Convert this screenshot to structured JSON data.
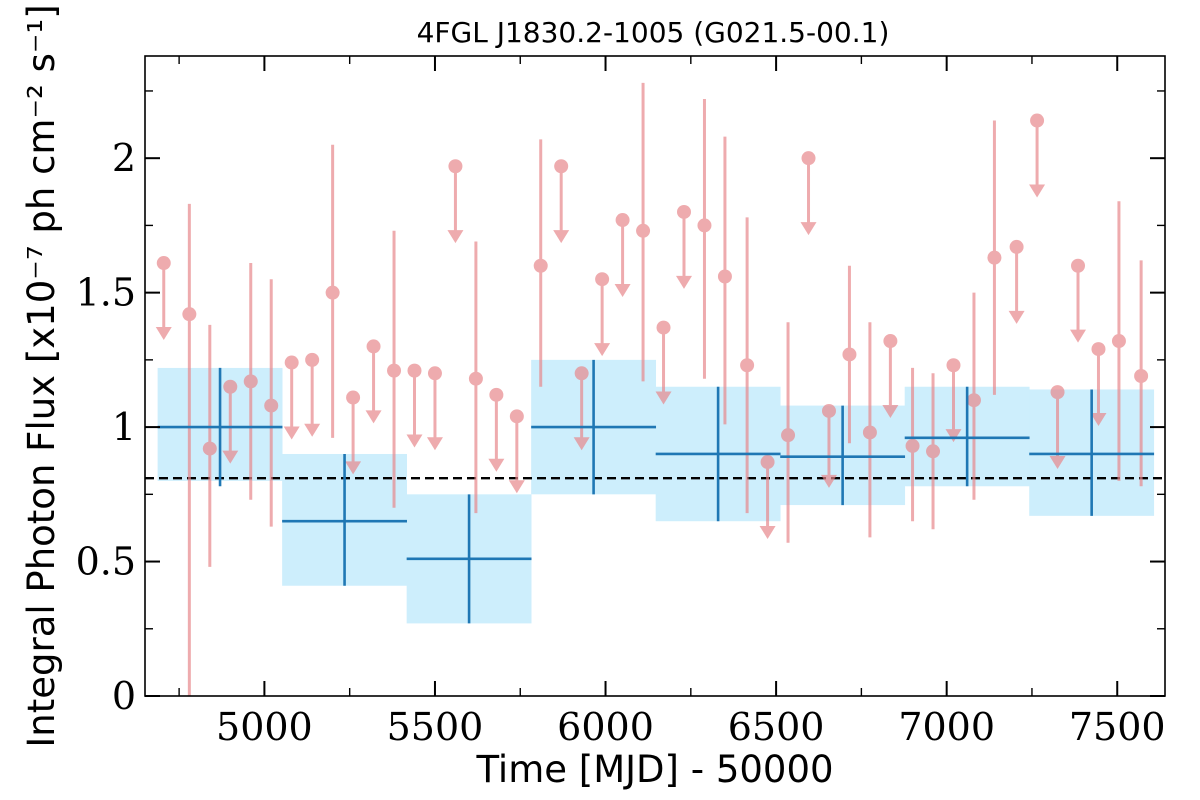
{
  "chart_data": {
    "type": "scatter",
    "title": "4FGL J1830.2-1005 (G021.5-00.1)",
    "xlabel": "Time [MJD] - 50000",
    "ylabel": "Integral Photon Flux [x10⁻⁷ ph cm⁻² s⁻¹]",
    "xlim": [
      4650,
      7640
    ],
    "ylim": [
      0,
      2.38
    ],
    "x_ticks": [
      5000,
      5500,
      6000,
      6500,
      7000,
      7500
    ],
    "x_tick_labels": [
      "5000",
      "5500",
      "6000",
      "6500",
      "7000",
      "7500"
    ],
    "y_ticks": [
      0,
      0.5,
      1,
      1.5,
      2
    ],
    "y_tick_labels": [
      "0",
      "0.5",
      "1",
      "1.5",
      "2"
    ],
    "reference_line": 0.81,
    "colors": {
      "short_bins": "#e8888c",
      "long_bins": "#1f77b4",
      "long_bins_band": "#cdeefc",
      "reference_line": "#000000"
    },
    "long_bins": [
      {
        "x": 4870,
        "xerr": 183,
        "y": 1.0,
        "ylo": 0.78,
        "yhi": 1.22,
        "band_lo": 0.8,
        "band_hi": 1.22
      },
      {
        "x": 5235,
        "xerr": 183,
        "y": 0.65,
        "ylo": 0.41,
        "yhi": 0.9,
        "band_lo": 0.41,
        "band_hi": 0.9
      },
      {
        "x": 5600,
        "xerr": 183,
        "y": 0.51,
        "ylo": 0.27,
        "yhi": 0.75,
        "band_lo": 0.27,
        "band_hi": 0.75
      },
      {
        "x": 5965,
        "xerr": 183,
        "y": 1.0,
        "ylo": 0.75,
        "yhi": 1.25,
        "band_lo": 0.75,
        "band_hi": 1.25
      },
      {
        "x": 6330,
        "xerr": 183,
        "y": 0.9,
        "ylo": 0.65,
        "yhi": 1.15,
        "band_lo": 0.65,
        "band_hi": 1.15
      },
      {
        "x": 6695,
        "xerr": 183,
        "y": 0.89,
        "ylo": 0.71,
        "yhi": 1.08,
        "band_lo": 0.71,
        "band_hi": 1.08
      },
      {
        "x": 7060,
        "xerr": 183,
        "y": 0.96,
        "ylo": 0.78,
        "yhi": 1.15,
        "band_lo": 0.78,
        "band_hi": 1.15
      },
      {
        "x": 7425,
        "xerr": 183,
        "y": 0.9,
        "ylo": 0.67,
        "yhi": 1.14,
        "band_lo": 0.67,
        "band_hi": 1.14
      }
    ],
    "short_bins": [
      {
        "x": 4705,
        "y": 1.61,
        "upper_limit": true
      },
      {
        "x": 4780,
        "y": 1.42,
        "lo": 0.0,
        "hi": 1.83
      },
      {
        "x": 4840,
        "y": 0.92,
        "lo": 0.48,
        "hi": 1.38
      },
      {
        "x": 4900,
        "y": 1.15,
        "upper_limit": true
      },
      {
        "x": 4960,
        "y": 1.17,
        "lo": 0.73,
        "hi": 1.61
      },
      {
        "x": 5020,
        "y": 1.08,
        "lo": 0.63,
        "hi": 1.55
      },
      {
        "x": 5080,
        "y": 1.24,
        "upper_limit": true
      },
      {
        "x": 5140,
        "y": 1.25,
        "upper_limit": true
      },
      {
        "x": 5200,
        "y": 1.5,
        "lo": 0.96,
        "hi": 2.05
      },
      {
        "x": 5260,
        "y": 1.11,
        "upper_limit": true
      },
      {
        "x": 5320,
        "y": 1.3,
        "upper_limit": true
      },
      {
        "x": 5380,
        "y": 1.21,
        "lo": 0.7,
        "hi": 1.73
      },
      {
        "x": 5440,
        "y": 1.21,
        "upper_limit": true
      },
      {
        "x": 5500,
        "y": 1.2,
        "upper_limit": true
      },
      {
        "x": 5560,
        "y": 1.97,
        "upper_limit": true
      },
      {
        "x": 5620,
        "y": 1.18,
        "lo": 0.68,
        "hi": 1.69
      },
      {
        "x": 5680,
        "y": 1.12,
        "upper_limit": true
      },
      {
        "x": 5740,
        "y": 1.04,
        "upper_limit": true
      },
      {
        "x": 5810,
        "y": 1.6,
        "lo": 1.15,
        "hi": 2.07
      },
      {
        "x": 5870,
        "y": 1.97,
        "upper_limit": true
      },
      {
        "x": 5930,
        "y": 1.2,
        "upper_limit": true
      },
      {
        "x": 5990,
        "y": 1.55,
        "upper_limit": true
      },
      {
        "x": 6050,
        "y": 1.77,
        "upper_limit": true
      },
      {
        "x": 6110,
        "y": 1.73,
        "lo": 1.17,
        "hi": 2.28
      },
      {
        "x": 6170,
        "y": 1.37,
        "upper_limit": true
      },
      {
        "x": 6230,
        "y": 1.8,
        "upper_limit": true
      },
      {
        "x": 6290,
        "y": 1.75,
        "lo": 1.18,
        "hi": 2.22
      },
      {
        "x": 6350,
        "y": 1.56,
        "lo": 1.01,
        "hi": 2.08
      },
      {
        "x": 6415,
        "y": 1.23,
        "lo": 0.68,
        "hi": 1.78
      },
      {
        "x": 6475,
        "y": 0.87,
        "upper_limit": true
      },
      {
        "x": 6535,
        "y": 0.97,
        "lo": 0.57,
        "hi": 1.39
      },
      {
        "x": 6595,
        "y": 2.0,
        "upper_limit": true
      },
      {
        "x": 6655,
        "y": 1.06,
        "upper_limit": true
      },
      {
        "x": 6715,
        "y": 1.27,
        "lo": 0.94,
        "hi": 1.6
      },
      {
        "x": 6775,
        "y": 0.98,
        "lo": 0.59,
        "hi": 1.39
      },
      {
        "x": 6835,
        "y": 1.32,
        "upper_limit": true
      },
      {
        "x": 6900,
        "y": 0.93,
        "lo": 0.65,
        "hi": 1.22
      },
      {
        "x": 6960,
        "y": 0.91,
        "lo": 0.62,
        "hi": 1.2
      },
      {
        "x": 7020,
        "y": 1.23,
        "upper_limit": true
      },
      {
        "x": 7080,
        "y": 1.1,
        "lo": 0.73,
        "hi": 1.5
      },
      {
        "x": 7140,
        "y": 1.63,
        "lo": 1.12,
        "hi": 2.14
      },
      {
        "x": 7205,
        "y": 1.67,
        "upper_limit": true
      },
      {
        "x": 7265,
        "y": 2.14,
        "upper_limit": true
      },
      {
        "x": 7325,
        "y": 1.13,
        "upper_limit": true
      },
      {
        "x": 7385,
        "y": 1.6,
        "upper_limit": true
      },
      {
        "x": 7445,
        "y": 1.29,
        "upper_limit": true
      },
      {
        "x": 7505,
        "y": 1.32,
        "lo": 0.8,
        "hi": 1.84
      },
      {
        "x": 7570,
        "y": 1.19,
        "lo": 0.78,
        "hi": 1.62
      }
    ],
    "upper_limit_arrow_length": 0.26,
    "grid": false,
    "legend": "none"
  }
}
